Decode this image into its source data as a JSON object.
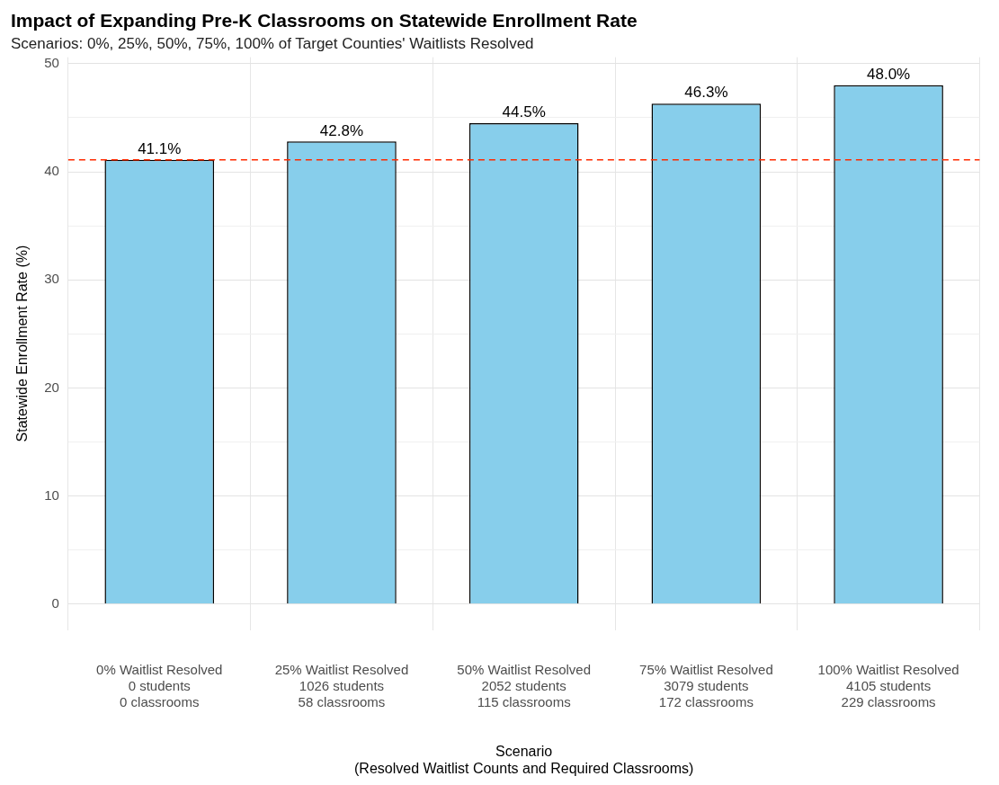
{
  "chart_data": {
    "type": "bar",
    "title": "Impact of Expanding Pre-K Classrooms on Statewide Enrollment Rate",
    "subtitle": "Scenarios: 0%, 25%, 50%, 75%, 100% of Target Counties' Waitlists Resolved",
    "xlabel": "Scenario\n(Resolved Waitlist Counts and Required Classrooms)",
    "ylabel": "Statewide Enrollment Rate (%)",
    "categories": [
      "0% Waitlist Resolved\n0 students\n0 classrooms",
      "25% Waitlist Resolved\n1026 students\n58 classrooms",
      "50% Waitlist Resolved\n2052 students\n115 classrooms",
      "75% Waitlist Resolved\n3079 students\n172 classrooms",
      "100% Waitlist Resolved\n4105 students\n229 classrooms"
    ],
    "values": [
      41.1,
      42.8,
      44.5,
      46.3,
      48.0
    ],
    "value_labels": [
      "41.1%",
      "42.8%",
      "44.5%",
      "46.3%",
      "48.0%"
    ],
    "color": "#87ceeb",
    "ylim": [
      -2.4,
      50.6
    ],
    "yticks": [
      0,
      {
        "value": 5,
        "label": null
      },
      10,
      {
        "value": 15,
        "label": null
      },
      20,
      {
        "value": 25,
        "label": null
      },
      30,
      {
        "value": 35,
        "label": null
      },
      40,
      {
        "value": 45,
        "label": null
      },
      50
    ],
    "ref_lines": [
      {
        "axis": "y",
        "value": 41.1,
        "color": "#ff2a00",
        "line_style": "dashed"
      }
    ],
    "grid": true,
    "legend": false
  }
}
